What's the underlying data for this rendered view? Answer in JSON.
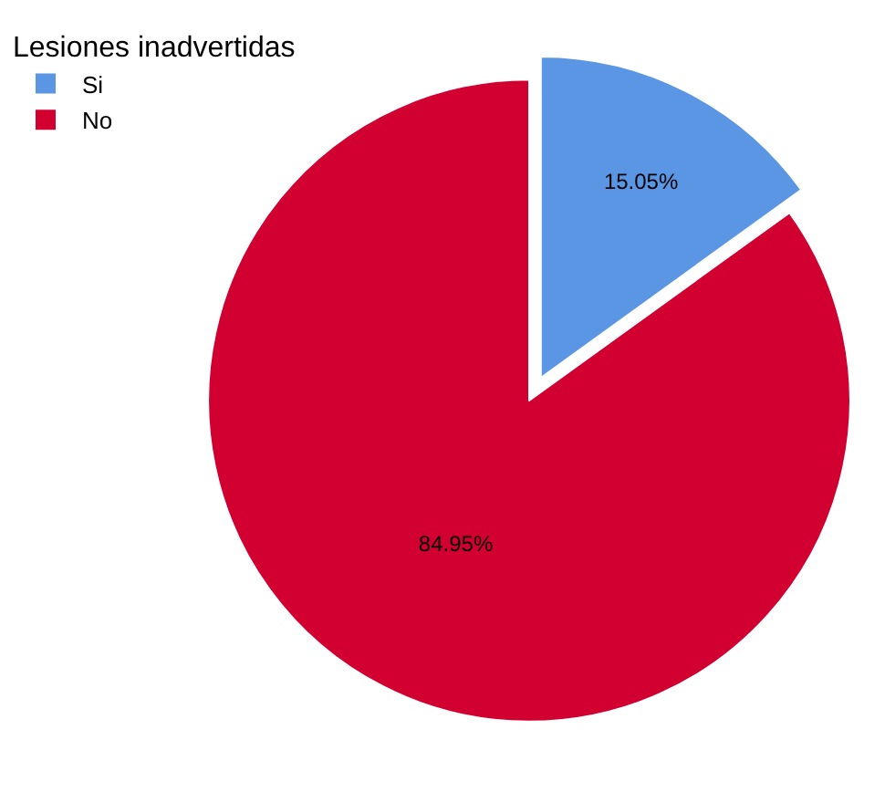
{
  "chart_data": {
    "type": "pie",
    "legend_title": "Lesiones inadvertidas",
    "categories": [
      "Si",
      "No"
    ],
    "values": [
      15.05,
      84.95
    ],
    "colors": [
      "#5a96e3",
      "#d20030"
    ],
    "value_labels": [
      "15.05%",
      "84.95%"
    ],
    "legend": "top left"
  }
}
